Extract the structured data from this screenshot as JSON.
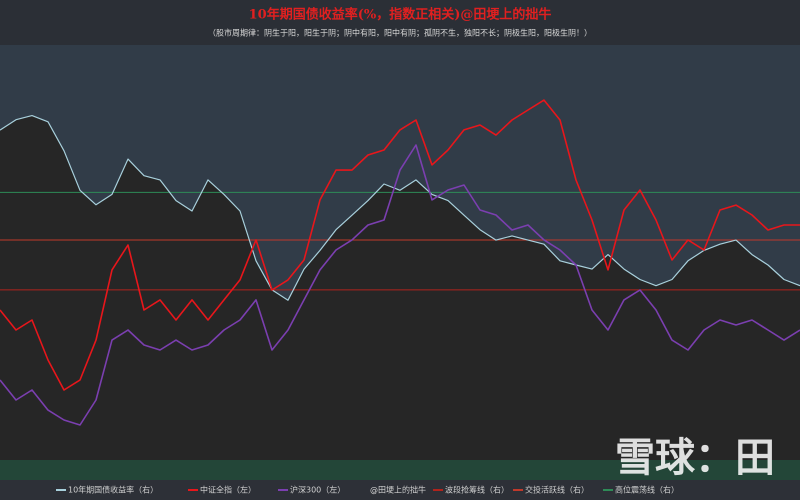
{
  "chart_data": {
    "type": "line",
    "title": "10年期国债收益率(%，指数正相关)@田埂上的拙牛",
    "subtitle": "（股市周期律：阴生于阳，阳生于阴；阴中有阳，阳中有阴；孤阴不生，独阳不长；阴极生阳，阳极生阴！）",
    "ylim": [
      3200,
      6200
    ],
    "y2lim": [
      2.4,
      4.4
    ],
    "series": [
      {
        "name": "10年期国债收益率（右）",
        "color": "#a8d0dc",
        "axis": "y2",
        "area": true,
        "values": [
          3.99,
          4.04,
          4.06,
          4.03,
          3.89,
          3.7,
          3.63,
          3.68,
          3.85,
          3.77,
          3.75,
          3.65,
          3.6,
          3.75,
          3.68,
          3.6,
          3.36,
          3.22,
          3.17,
          3.32,
          3.41,
          3.51,
          3.58,
          3.65,
          3.73,
          3.7,
          3.75,
          3.68,
          3.65,
          3.58,
          3.51,
          3.46,
          3.48,
          3.46,
          3.44,
          3.36,
          3.34,
          3.32,
          3.39,
          3.32,
          3.27,
          3.24,
          3.27,
          3.36,
          3.41,
          3.44,
          3.46,
          3.39,
          3.34,
          3.27,
          3.24
        ]
      },
      {
        "name": "中证全指（左）",
        "color": "#e8161b",
        "values": [
          4284,
          4140,
          4212,
          3923,
          3706,
          3778,
          4067,
          4574,
          4754,
          4284,
          4357,
          4212,
          4357,
          4212,
          4357,
          4502,
          4791,
          4429,
          4502,
          4646,
          5080,
          5296,
          5296,
          5405,
          5441,
          5586,
          5658,
          5333,
          5441,
          5586,
          5622,
          5549,
          5658,
          5730,
          5802,
          5658,
          5224,
          4935,
          4574,
          5007,
          5152,
          4935,
          4646,
          4791,
          4718,
          5007,
          5043,
          4971,
          4863,
          4899,
          4899
        ]
      },
      {
        "name": "沪深300（左）",
        "color": "#7b3fb0",
        "values": [
          3778,
          3634,
          3706,
          3561,
          3489,
          3453,
          3634,
          4067,
          4140,
          4031,
          3995,
          4067,
          3995,
          4031,
          4140,
          4212,
          4357,
          3995,
          4140,
          4357,
          4574,
          4718,
          4791,
          4899,
          4935,
          5296,
          5477,
          5080,
          5152,
          5188,
          5007,
          4971,
          4863,
          4899,
          4791,
          4718,
          4610,
          4284,
          4140,
          4357,
          4429,
          4284,
          4067,
          3995,
          4140,
          4212,
          4176,
          4212,
          4140,
          4067,
          4140
        ]
      }
    ],
    "author": "@田埂上的拙牛",
    "hlines": [
      {
        "name": "波段抢筹线（右）",
        "color": "#b0231c",
        "value": 3.22
      },
      {
        "name": "交投活跃线（右）",
        "color": "#c0392b",
        "value": 3.46
      },
      {
        "name": "高位震荡线（右）",
        "color": "#2e8b57",
        "value": 3.69
      }
    ],
    "watermark": "雪球：田"
  }
}
